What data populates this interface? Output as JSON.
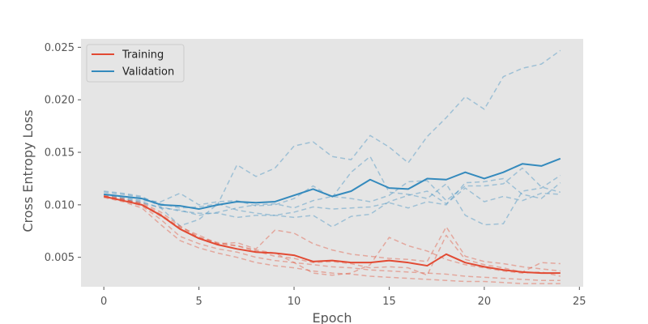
{
  "chart_data": {
    "type": "line",
    "xlabel": "Epoch",
    "ylabel": "Cross Entropy Loss",
    "xlim": [
      -1.2,
      25.2
    ],
    "ylim": [
      0.0022,
      0.0258
    ],
    "xticks": [
      0,
      5,
      10,
      15,
      20,
      25
    ],
    "xtick_labels": [
      "0",
      "5",
      "10",
      "15",
      "20",
      "25"
    ],
    "yticks": [
      0.005,
      0.01,
      0.015,
      0.02,
      0.025
    ],
    "ytick_labels": [
      "0.005",
      "0.010",
      "0.015",
      "0.020",
      "0.025"
    ],
    "grid": false,
    "legend_position": "top-left",
    "background_color": "#e5e5e5",
    "colors": {
      "training": "#e24a33",
      "validation": "#348abd"
    },
    "legend": [
      {
        "label": "Training",
        "color": "#e24a33"
      },
      {
        "label": "Validation",
        "color": "#348abd"
      }
    ],
    "x": [
      0,
      1,
      2,
      3,
      4,
      5,
      6,
      7,
      8,
      9,
      10,
      11,
      12,
      13,
      14,
      15,
      16,
      17,
      18,
      19,
      20,
      21,
      22,
      23,
      24
    ],
    "training_mean": [
      0.0108,
      0.0104,
      0.01,
      0.009,
      0.0077,
      0.0068,
      0.0062,
      0.0058,
      0.0055,
      0.0054,
      0.0052,
      0.0046,
      0.0047,
      0.0045,
      0.0045,
      0.0047,
      0.0045,
      0.0042,
      0.0053,
      0.0045,
      0.0041,
      0.0038,
      0.0036,
      0.0035,
      0.0035
    ],
    "validation_mean": [
      0.011,
      0.0108,
      0.0106,
      0.01,
      0.0099,
      0.0096,
      0.01,
      0.0103,
      0.0102,
      0.0103,
      0.0109,
      0.0115,
      0.0108,
      0.0113,
      0.0124,
      0.0116,
      0.0115,
      0.0125,
      0.0124,
      0.0131,
      0.0125,
      0.0131,
      0.0139,
      0.0137,
      0.0144
    ],
    "training_runs": [
      [
        0.0108,
        0.0105,
        0.0101,
        0.0091,
        0.0078,
        0.0069,
        0.0063,
        0.0064,
        0.0058,
        0.0076,
        0.0073,
        0.0063,
        0.0057,
        0.0053,
        0.0051,
        0.0049,
        0.0048,
        0.0046,
        0.0079,
        0.0051,
        0.0046,
        0.0044,
        0.0041,
        0.0039,
        0.0037
      ],
      [
        0.0109,
        0.0104,
        0.0099,
        0.0086,
        0.007,
        0.0063,
        0.0058,
        0.0055,
        0.005,
        0.0047,
        0.0045,
        0.0043,
        0.0041,
        0.004,
        0.0038,
        0.0037,
        0.0036,
        0.0035,
        0.0034,
        0.0032,
        0.0031,
        0.003,
        0.0029,
        0.0028,
        0.0028
      ],
      [
        0.0107,
        0.0103,
        0.0097,
        0.0081,
        0.0066,
        0.0059,
        0.0054,
        0.005,
        0.0045,
        0.0042,
        0.004,
        0.0037,
        0.0035,
        0.0034,
        0.0032,
        0.0031,
        0.003,
        0.0029,
        0.0028,
        0.0027,
        0.0027,
        0.0026,
        0.0025,
        0.0025,
        0.0025
      ],
      [
        0.0108,
        0.0105,
        0.0102,
        0.0093,
        0.008,
        0.0069,
        0.0064,
        0.0061,
        0.0057,
        0.0054,
        0.0045,
        0.0035,
        0.0033,
        0.0035,
        0.0043,
        0.0069,
        0.0061,
        0.0056,
        0.0048,
        0.0043,
        0.004,
        0.0037,
        0.0035,
        0.0036,
        0.0032
      ],
      [
        0.0109,
        0.0106,
        0.01,
        0.0089,
        0.0079,
        0.0071,
        0.0063,
        0.0061,
        0.0056,
        0.0051,
        0.0049,
        0.0045,
        0.0046,
        0.0044,
        0.004,
        0.0041,
        0.004,
        0.0033,
        0.0071,
        0.0048,
        0.0043,
        0.004,
        0.0036,
        0.0045,
        0.0044
      ]
    ],
    "validation_runs": [
      [
        0.0112,
        0.011,
        0.0107,
        0.0101,
        0.0097,
        0.0098,
        0.0101,
        0.0138,
        0.0127,
        0.0135,
        0.0156,
        0.016,
        0.0146,
        0.0143,
        0.0166,
        0.0155,
        0.014,
        0.0165,
        0.0183,
        0.0203,
        0.0191,
        0.0222,
        0.023,
        0.0234,
        0.0247
      ],
      [
        0.011,
        0.0106,
        0.0103,
        0.0097,
        0.008,
        0.0086,
        0.0101,
        0.0095,
        0.0092,
        0.009,
        0.0088,
        0.009,
        0.0079,
        0.0089,
        0.0091,
        0.0103,
        0.0109,
        0.0113,
        0.0101,
        0.0116,
        0.0103,
        0.0108,
        0.0104,
        0.0111,
        0.011
      ],
      [
        0.011,
        0.0107,
        0.0104,
        0.0103,
        0.0111,
        0.01,
        0.0103,
        0.0104,
        0.0099,
        0.01,
        0.0106,
        0.0118,
        0.0107,
        0.0131,
        0.0146,
        0.0112,
        0.011,
        0.0106,
        0.012,
        0.009,
        0.0081,
        0.0082,
        0.0113,
        0.0116,
        0.0128
      ],
      [
        0.0108,
        0.0105,
        0.0102,
        0.0097,
        0.0095,
        0.009,
        0.0093,
        0.0097,
        0.01,
        0.0101,
        0.0097,
        0.0104,
        0.0108,
        0.0106,
        0.0103,
        0.0109,
        0.0122,
        0.0123,
        0.0104,
        0.0118,
        0.0118,
        0.012,
        0.0135,
        0.0117,
        0.0112
      ],
      [
        0.0113,
        0.0111,
        0.0108,
        0.0098,
        0.0094,
        0.0092,
        0.0092,
        0.0088,
        0.009,
        0.009,
        0.0093,
        0.0098,
        0.0096,
        0.0097,
        0.0098,
        0.0102,
        0.0097,
        0.0103,
        0.01,
        0.0121,
        0.0122,
        0.0125,
        0.011,
        0.0106,
        0.0121
      ]
    ]
  }
}
